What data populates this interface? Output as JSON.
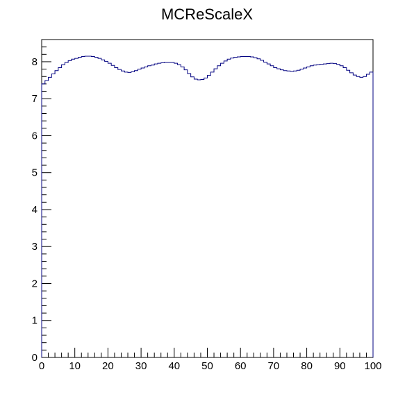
{
  "chart_data": {
    "type": "histogram",
    "title": "MCReScaleX",
    "xlabel": "",
    "ylabel": "",
    "xlim": [
      0,
      100
    ],
    "ylim": [
      0,
      8.6
    ],
    "bin_width": 1,
    "x_ticks": [
      0,
      10,
      20,
      30,
      40,
      50,
      60,
      70,
      80,
      90,
      100
    ],
    "y_ticks": [
      0,
      1,
      2,
      3,
      4,
      5,
      6,
      7,
      8
    ],
    "grid": false,
    "legend": "none",
    "line_color": "#000080",
    "values": [
      7.4,
      7.49,
      7.58,
      7.67,
      7.76,
      7.84,
      7.92,
      7.98,
      8.03,
      8.07,
      8.09,
      8.12,
      8.14,
      8.15,
      8.15,
      8.14,
      8.12,
      8.09,
      8.05,
      8.01,
      7.96,
      7.9,
      7.84,
      7.79,
      7.75,
      7.72,
      7.71,
      7.73,
      7.76,
      7.8,
      7.83,
      7.86,
      7.89,
      7.91,
      7.94,
      7.96,
      7.97,
      7.98,
      7.98,
      7.98,
      7.96,
      7.92,
      7.86,
      7.78,
      7.68,
      7.59,
      7.53,
      7.51,
      7.52,
      7.56,
      7.63,
      7.72,
      7.81,
      7.89,
      7.96,
      8.02,
      8.07,
      8.1,
      8.12,
      8.13,
      8.14,
      8.14,
      8.14,
      8.13,
      8.11,
      8.08,
      8.04,
      7.99,
      7.94,
      7.89,
      7.84,
      7.81,
      7.78,
      7.76,
      7.75,
      7.74,
      7.75,
      7.77,
      7.8,
      7.83,
      7.86,
      7.89,
      7.91,
      7.92,
      7.93,
      7.94,
      7.95,
      7.96,
      7.95,
      7.93,
      7.89,
      7.84,
      7.77,
      7.7,
      7.64,
      7.6,
      7.58,
      7.6,
      7.66,
      7.72
    ]
  }
}
